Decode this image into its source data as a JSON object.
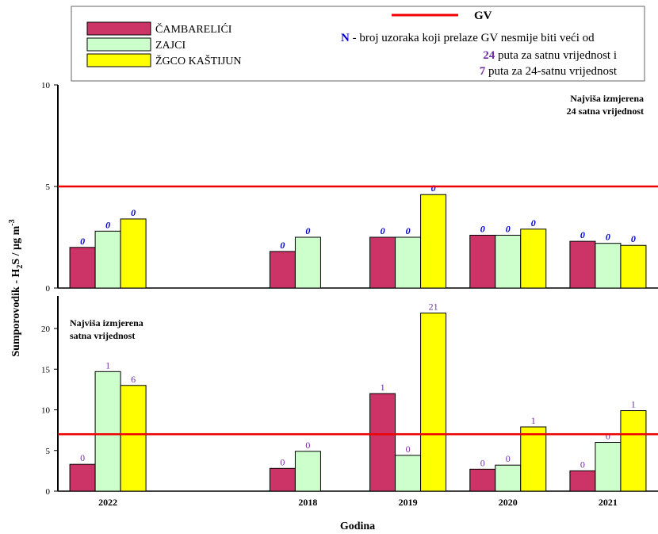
{
  "legend_title": "GV",
  "note": [
    "N",
    " - broj uzoraka koji prelaze GV nesmije biti veći od",
    "24",
    " puta za satnu vrijednost i",
    "7",
    " puta za 24-satnu vrijednost"
  ],
  "x_label": "Godina",
  "y_label": [
    "Sumporovodik - H",
    "2",
    "S / µg m",
    "-3"
  ],
  "chart_data": [
    {
      "type": "bar",
      "annotation": [
        "Najviša izmjerena",
        "24 satna vrijednost"
      ],
      "series": [
        {
          "name": "ČAMBARELIĆI",
          "color": "#cc3366",
          "values": [
            2.0,
            null,
            1.8,
            2.5,
            2.6,
            2.3
          ],
          "counts": [
            0,
            null,
            0,
            0,
            0,
            0
          ]
        },
        {
          "name": "ZAJCI",
          "color": "#ccffcc",
          "values": [
            2.8,
            null,
            2.5,
            2.5,
            2.6,
            2.2
          ],
          "counts": [
            0,
            null,
            0,
            0,
            0,
            0
          ]
        },
        {
          "name": "ŽGCO KAŠTIJUN",
          "color": "#ffff00",
          "values": [
            3.4,
            null,
            null,
            4.6,
            2.9,
            2.1
          ],
          "counts": [
            0,
            null,
            null,
            0,
            0,
            0
          ]
        }
      ],
      "count_color": "#0000cc",
      "ylim": [
        0,
        10
      ],
      "yticks": [
        0,
        5,
        10
      ],
      "limit": 5,
      "limit_color": "#ee0000"
    },
    {
      "type": "bar",
      "annotation": [
        "Najviša izmjerena",
        "satna vrijednost"
      ],
      "categories": [
        "2022",
        null,
        "2018",
        "2019",
        "2020",
        "2021"
      ],
      "series": [
        {
          "color": "#cc3366",
          "values": [
            3.3,
            null,
            2.8,
            12.0,
            2.7,
            2.5
          ],
          "counts": [
            0,
            null,
            0,
            1,
            0,
            0
          ]
        },
        {
          "color": "#ccffcc",
          "values": [
            14.7,
            null,
            4.9,
            4.4,
            3.2,
            6.0
          ],
          "counts": [
            1,
            null,
            0,
            0,
            0,
            0
          ]
        },
        {
          "color": "#ffff00",
          "values": [
            13.0,
            null,
            null,
            21.9,
            7.9,
            9.9
          ],
          "counts": [
            6,
            null,
            null,
            21,
            1,
            1
          ]
        }
      ],
      "count_color": "#7030a0",
      "ylim": [
        0,
        24
      ],
      "yticks": [
        0,
        5,
        10,
        15,
        20
      ],
      "limit": 7,
      "limit_color": "#ee0000"
    }
  ]
}
